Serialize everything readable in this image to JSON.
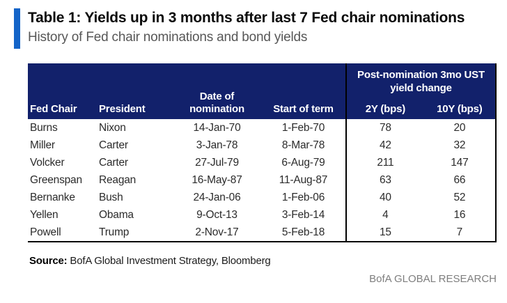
{
  "colors": {
    "accent": "#1464c8",
    "header-bg": "#12216b"
  },
  "header": {
    "title": "Table 1: Yields up in 3 months after last 7 Fed chair nominations",
    "subtitle": "History of Fed chair nominations and bond yields"
  },
  "table": {
    "headers": {
      "fed_chair": "Fed Chair",
      "president": "President",
      "nomination_line1": "Date of",
      "nomination_line2": "nomination",
      "start_of_term": "Start of term",
      "group_line1": "Post-nomination 3mo UST",
      "group_line2": "yield change",
      "y2": "2Y (bps)",
      "y10": "10Y (bps)"
    },
    "rows": [
      {
        "chair": "Burns",
        "president": "Nixon",
        "nomination": "14-Jan-70",
        "start": "1-Feb-70",
        "y2": "78",
        "y10": "20"
      },
      {
        "chair": "Miller",
        "president": "Carter",
        "nomination": "3-Jan-78",
        "start": "8-Mar-78",
        "y2": "42",
        "y10": "32"
      },
      {
        "chair": "Volcker",
        "president": "Carter",
        "nomination": "27-Jul-79",
        "start": "6-Aug-79",
        "y2": "211",
        "y10": "147"
      },
      {
        "chair": "Greenspan",
        "president": "Reagan",
        "nomination": "16-May-87",
        "start": "11-Aug-87",
        "y2": "63",
        "y10": "66"
      },
      {
        "chair": "Bernanke",
        "president": "Bush",
        "nomination": "24-Jan-06",
        "start": "1-Feb-06",
        "y2": "40",
        "y10": "52"
      },
      {
        "chair": "Yellen",
        "president": "Obama",
        "nomination": "9-Oct-13",
        "start": "3-Feb-14",
        "y2": "4",
        "y10": "16"
      },
      {
        "chair": "Powell",
        "president": "Trump",
        "nomination": "2-Nov-17",
        "start": "5-Feb-18",
        "y2": "15",
        "y10": "7"
      }
    ]
  },
  "footer": {
    "source_label": "Source:",
    "source_text": " BofA Global Investment Strategy, Bloomberg",
    "brand": "BofA GLOBAL RESEARCH"
  },
  "chart_data": {
    "type": "table",
    "title": "Table 1: Yields up in 3 months after last 7 Fed chair nominations",
    "subtitle": "History of Fed chair nominations and bond yields",
    "group_header": "Post-nomination 3mo UST yield change",
    "columns": [
      "Fed Chair",
      "President",
      "Date of nomination",
      "Start of term",
      "2Y (bps)",
      "10Y (bps)"
    ],
    "rows": [
      [
        "Burns",
        "Nixon",
        "14-Jan-70",
        "1-Feb-70",
        78,
        20
      ],
      [
        "Miller",
        "Carter",
        "3-Jan-78",
        "8-Mar-78",
        42,
        32
      ],
      [
        "Volcker",
        "Carter",
        "27-Jul-79",
        "6-Aug-79",
        211,
        147
      ],
      [
        "Greenspan",
        "Reagan",
        "16-May-87",
        "11-Aug-87",
        63,
        66
      ],
      [
        "Bernanke",
        "Bush",
        "24-Jan-06",
        "1-Feb-06",
        40,
        52
      ],
      [
        "Yellen",
        "Obama",
        "9-Oct-13",
        "3-Feb-14",
        4,
        16
      ],
      [
        "Powell",
        "Trump",
        "2-Nov-17",
        "5-Feb-18",
        15,
        7
      ]
    ],
    "source": "BofA Global Investment Strategy, Bloomberg"
  }
}
